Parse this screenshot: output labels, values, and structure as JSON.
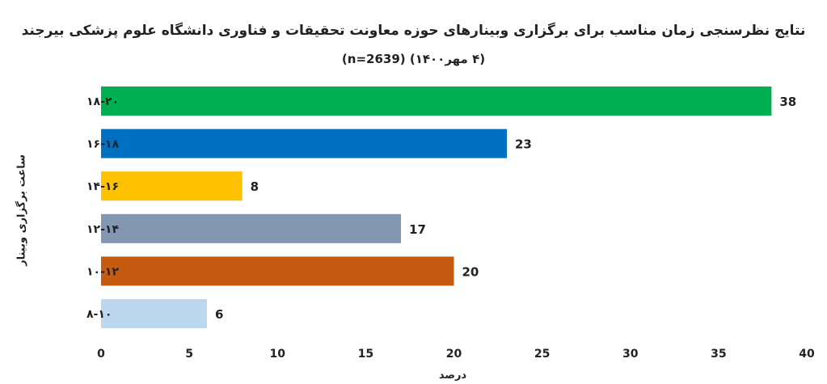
{
  "chart_data": {
    "type": "bar",
    "orientation": "horizontal",
    "title": "نتایج نظرسنجی زمان مناسب برای برگزاری وبینارهای حوزه معاونت تحقیقات و فناوری دانشگاه علوم پزشکی بیرجند",
    "subtitle": "(۴ مهر۱۴۰۰)        (n=2639)",
    "xlabel": "درصد",
    "ylabel": "ساعت برگزاری وبینار",
    "categories": [
      "۱۸-۲۰",
      "۱۶-۱۸",
      "۱۴-۱۶",
      "۱۲-۱۴",
      "۱۰-۱۲",
      "۸-۱۰"
    ],
    "values": [
      38,
      23,
      8,
      17,
      20,
      6
    ],
    "colors": [
      "#00b050",
      "#0070c0",
      "#ffc000",
      "#8497b0",
      "#c55a11",
      "#bdd7ee"
    ],
    "xlim": [
      0,
      40
    ],
    "xticks": [
      0,
      5,
      10,
      15,
      20,
      25,
      30,
      35,
      40
    ],
    "grid": false,
    "legend": "none"
  }
}
